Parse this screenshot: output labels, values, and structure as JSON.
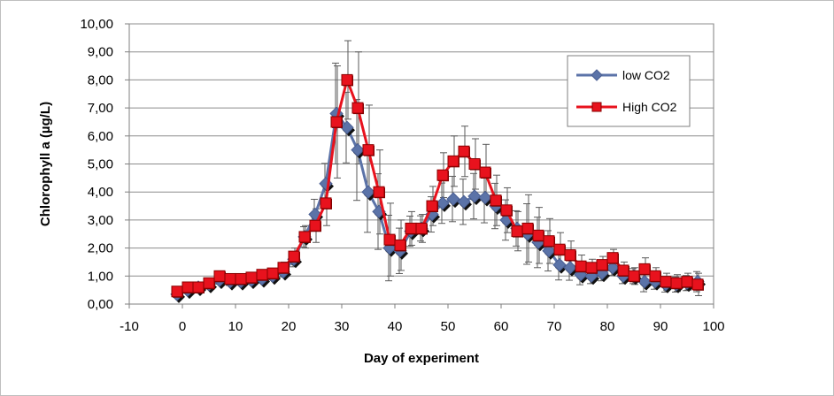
{
  "chart_data": {
    "type": "line",
    "xlabel": "Day of experiment",
    "ylabel": "Chlorophyll a (µg/L)",
    "xlim": [
      -10,
      100
    ],
    "ylim": [
      0,
      10
    ],
    "x_ticks": [
      "-10",
      "0",
      "10",
      "20",
      "30",
      "40",
      "50",
      "60",
      "70",
      "80",
      "90",
      "100"
    ],
    "y_ticks": [
      "0,00",
      "1,00",
      "2,00",
      "3,00",
      "4,00",
      "5,00",
      "6,00",
      "7,00",
      "8,00",
      "9,00",
      "10,00"
    ],
    "grid": "horizontal",
    "legend": "top-right",
    "series": [
      {
        "name": "low CO2",
        "color": "#5b73a8",
        "marker": "diamond",
        "x": [
          -1,
          1,
          3,
          5,
          7,
          9,
          11,
          13,
          15,
          17,
          19,
          21,
          23,
          25,
          27,
          29,
          31,
          33,
          35,
          37,
          39,
          41,
          43,
          45,
          47,
          49,
          51,
          53,
          55,
          57,
          59,
          61,
          63,
          65,
          67,
          69,
          71,
          73,
          75,
          77,
          79,
          81,
          83,
          85,
          87,
          89,
          91,
          93,
          95,
          97
        ],
        "values": [
          0.35,
          0.5,
          0.6,
          0.7,
          0.85,
          0.8,
          0.8,
          0.85,
          0.9,
          1.0,
          1.15,
          1.6,
          2.4,
          3.2,
          4.3,
          6.8,
          6.3,
          5.5,
          4.0,
          3.3,
          2.0,
          1.9,
          2.6,
          2.7,
          3.2,
          3.6,
          3.75,
          3.65,
          3.85,
          3.8,
          3.5,
          3.0,
          2.7,
          2.5,
          2.2,
          1.9,
          1.4,
          1.3,
          1.05,
          1.0,
          1.1,
          1.3,
          1.0,
          1.0,
          0.8,
          0.8,
          0.7,
          0.7,
          0.75,
          0.8
        ]
      },
      {
        "name": "High CO2",
        "color": "#e8121d",
        "marker": "square",
        "x": [
          -1,
          1,
          3,
          5,
          7,
          9,
          11,
          13,
          15,
          17,
          19,
          21,
          23,
          25,
          27,
          29,
          31,
          33,
          35,
          37,
          39,
          41,
          43,
          45,
          47,
          49,
          51,
          53,
          55,
          57,
          59,
          61,
          63,
          65,
          67,
          69,
          71,
          73,
          75,
          77,
          79,
          81,
          83,
          85,
          87,
          89,
          91,
          93,
          95,
          97
        ],
        "values": [
          0.45,
          0.6,
          0.6,
          0.75,
          1.0,
          0.9,
          0.9,
          0.95,
          1.05,
          1.1,
          1.3,
          1.7,
          2.4,
          2.8,
          3.6,
          6.5,
          8.0,
          7.0,
          5.5,
          4.0,
          2.3,
          2.1,
          2.7,
          2.7,
          3.5,
          4.6,
          5.1,
          5.45,
          5.0,
          4.7,
          3.7,
          3.35,
          2.6,
          2.7,
          2.45,
          2.25,
          1.95,
          1.75,
          1.35,
          1.3,
          1.4,
          1.65,
          1.2,
          1.0,
          1.25,
          1.0,
          0.8,
          0.75,
          0.8,
          0.7
        ]
      }
    ],
    "error_bars": [
      0.1,
      0.1,
      0.1,
      0.15,
      0.15,
      0.15,
      0.1,
      0.1,
      0.15,
      0.15,
      0.2,
      0.3,
      0.4,
      0.6,
      0.8,
      2.0,
      1.4,
      2.0,
      1.6,
      1.5,
      1.3,
      0.9,
      0.6,
      0.5,
      0.7,
      0.8,
      0.9,
      0.9,
      0.9,
      1.0,
      0.9,
      0.8,
      0.7,
      1.2,
      1.0,
      0.8,
      0.6,
      0.5,
      0.4,
      0.3,
      0.3,
      0.3,
      0.3,
      0.3,
      0.4,
      0.3,
      0.3,
      0.3,
      0.3,
      0.4
    ]
  }
}
